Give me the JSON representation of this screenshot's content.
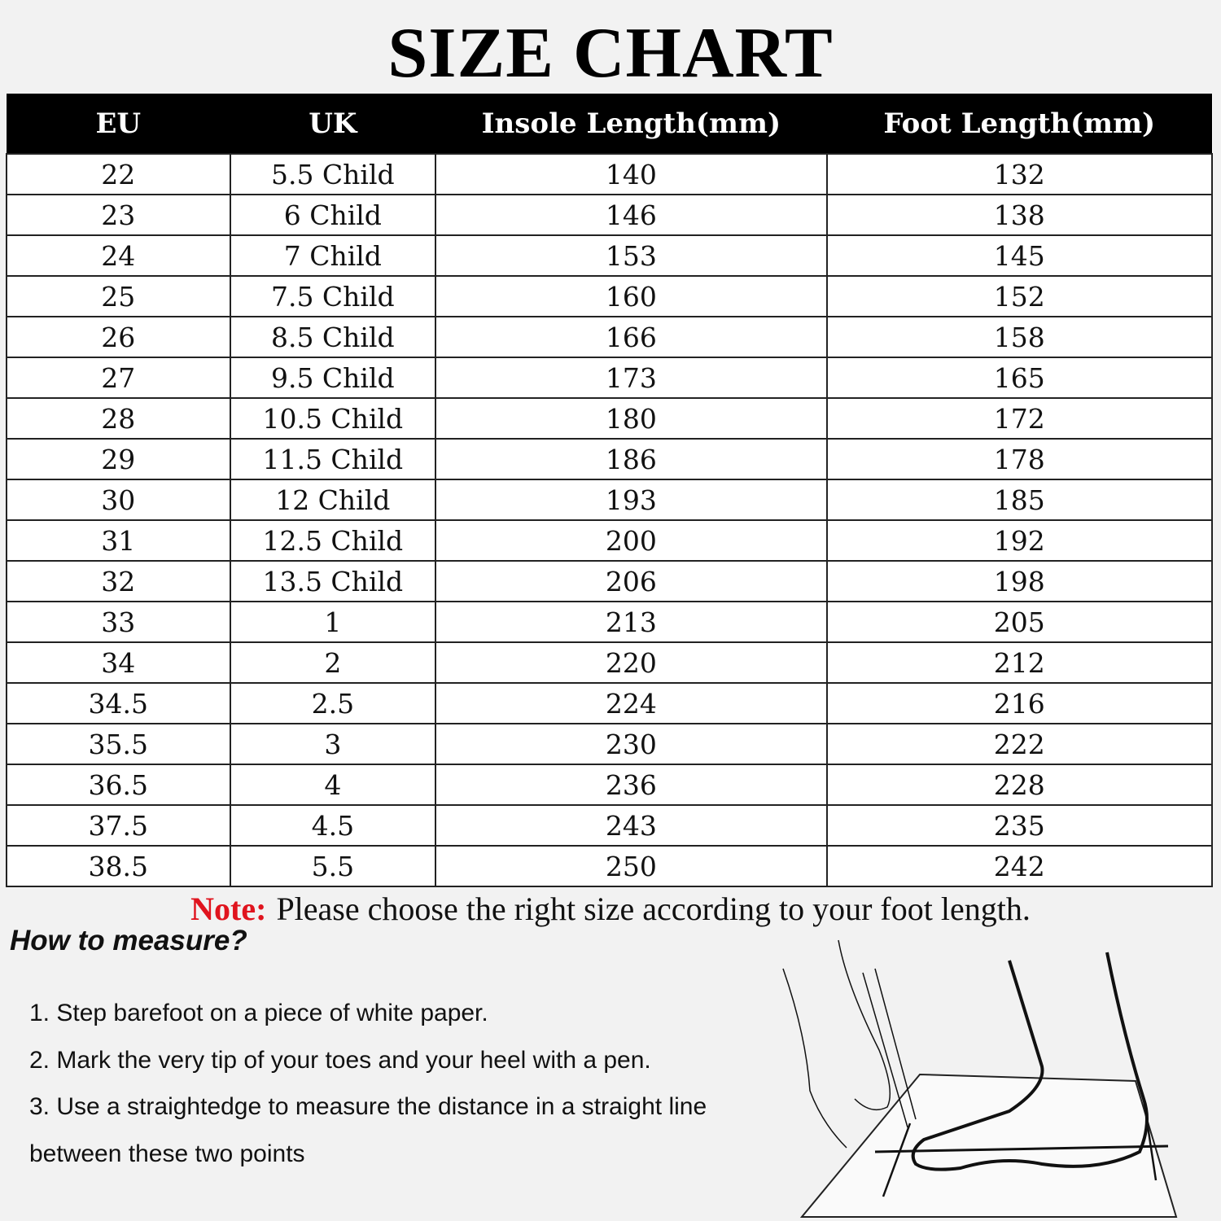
{
  "title": "SIZE CHART",
  "table": {
    "headers": [
      "EU",
      "UK",
      "Insole Length(mm)",
      "Foot Length(mm)"
    ],
    "rows": [
      [
        "22",
        "5.5 Child",
        "140",
        "132"
      ],
      [
        "23",
        "6 Child",
        "146",
        "138"
      ],
      [
        "24",
        "7 Child",
        "153",
        "145"
      ],
      [
        "25",
        "7.5 Child",
        "160",
        "152"
      ],
      [
        "26",
        "8.5 Child",
        "166",
        "158"
      ],
      [
        "27",
        "9.5 Child",
        "173",
        "165"
      ],
      [
        "28",
        "10.5 Child",
        "180",
        "172"
      ],
      [
        "29",
        "11.5 Child",
        "186",
        "178"
      ],
      [
        "30",
        "12 Child",
        "193",
        "185"
      ],
      [
        "31",
        "12.5 Child",
        "200",
        "192"
      ],
      [
        "32",
        "13.5 Child",
        "206",
        "198"
      ],
      [
        "33",
        "1",
        "213",
        "205"
      ],
      [
        "34",
        "2",
        "220",
        "212"
      ],
      [
        "34.5",
        "2.5",
        "224",
        "216"
      ],
      [
        "35.5",
        "3",
        "230",
        "222"
      ],
      [
        "36.5",
        "4",
        "236",
        "228"
      ],
      [
        "37.5",
        "4.5",
        "243",
        "235"
      ],
      [
        "38.5",
        "5.5",
        "250",
        "242"
      ]
    ]
  },
  "note": {
    "label": "Note:",
    "text": "Please choose the right size according to your foot length."
  },
  "how_to": {
    "heading": "How to measure?",
    "steps": [
      "1. Step barefoot on a piece of white paper.",
      "2. Mark the very tip of your toes and your heel with a pen.",
      "3. Use a straightedge to measure the distance in a straight line",
      "between these two points"
    ]
  },
  "colors": {
    "note_label": "#e0141e",
    "header_bg": "#000000"
  },
  "illustration": "foot-measuring-drawing"
}
